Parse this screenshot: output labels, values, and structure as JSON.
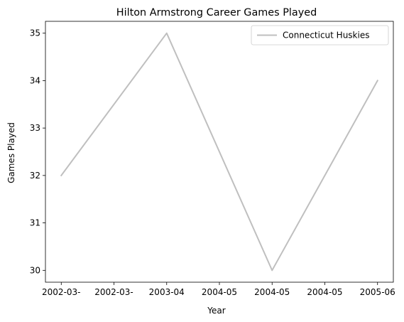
{
  "chart_data": {
    "type": "line",
    "title": "Hilton Armstrong Career Games Played",
    "xlabel": "Year",
    "ylabel": "Games Played",
    "x_tick_labels": [
      "2002-03-",
      "2002-03-",
      "2003-04",
      "2004-05",
      "2004-05",
      "2004-05",
      "2005-06"
    ],
    "points": [
      {
        "x_index": 0,
        "y": 32
      },
      {
        "x_index": 2,
        "y": 35
      },
      {
        "x_index": 4,
        "y": 30
      },
      {
        "x_index": 6,
        "y": 34
      }
    ],
    "y_ticks": [
      30,
      31,
      32,
      33,
      34,
      35
    ],
    "ylim": [
      29.75,
      35.25
    ],
    "xlim": [
      -0.3,
      6.3
    ],
    "grid": false,
    "legend_position": "upper right",
    "series": [
      {
        "name": "Connecticut Huskies",
        "color": "#bfbfbf"
      }
    ]
  }
}
